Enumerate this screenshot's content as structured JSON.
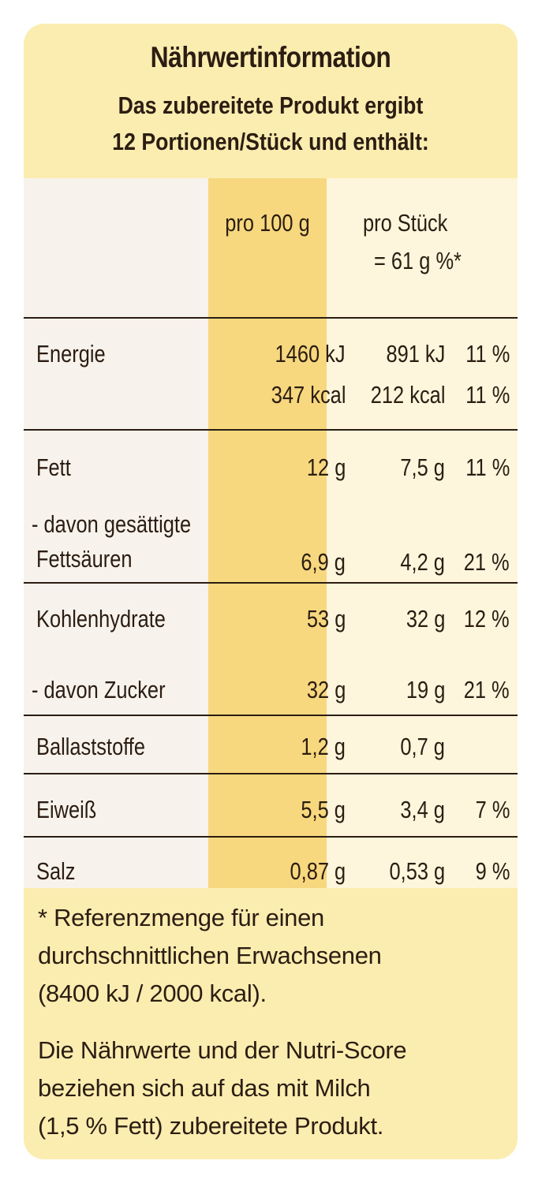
{
  "header": {
    "title": "Nährwertinformation",
    "subtitle_line1": "Das zubereitete Produkt ergibt",
    "subtitle_line2": "12 Portionen/Stück und enthält:"
  },
  "columns": {
    "per100": "pro 100 g",
    "perPiece_line1": "pro Stück",
    "perPiece_line2": "= 61 g  %*"
  },
  "rows": {
    "energie": {
      "label": "Energie",
      "kj100": "1460  kJ",
      "kjSt": "891 kJ",
      "kjPct": "11 %",
      "kcal100": "347  kcal",
      "kcalSt": "212 kcal",
      "kcalPct": "11 %"
    },
    "fett": {
      "label": "Fett",
      "v100": "12 g",
      "vSt": "7,5 g",
      "pct": "11 %"
    },
    "fettsaeuren": {
      "label1": "- davon gesättigte",
      "label2": "Fettsäuren",
      "v100": "6,9 g",
      "vSt": "4,2 g",
      "pct": "21 %"
    },
    "kohlenhydrate": {
      "label": "Kohlenhydrate",
      "v100": "53 g",
      "vSt": "32 g",
      "pct": "12 %"
    },
    "zucker": {
      "label": "- davon Zucker",
      "v100": "32 g",
      "vSt": "19 g",
      "pct": "21 %"
    },
    "ballaststoffe": {
      "label": "Ballaststoffe",
      "v100": "1,2 g",
      "vSt": "0,7 g",
      "pct": ""
    },
    "eiweiss": {
      "label": "Eiweiß",
      "v100": "5,5 g",
      "vSt": "3,4 g",
      "pct": "7 %"
    },
    "salz": {
      "label": "Salz",
      "v100": "0,87 g",
      "vSt": "0,53 g",
      "pct": "9 %"
    }
  },
  "footnote1": {
    "line1": "* Referenzmenge für einen",
    "line2": "durchschnittlichen Erwachsenen",
    "line3": "(8400 kJ / 2000 kcal)."
  },
  "footnote2": {
    "line1": "Die Nährwerte und der Nutri-Score",
    "line2": "beziehen sich auf das mit Milch",
    "line3": "(1,5 % Fett) zubereitete Produkt."
  },
  "colors": {
    "card": "#fbedb0",
    "highlight": "#f7d87e",
    "text": "#2b1d12"
  }
}
